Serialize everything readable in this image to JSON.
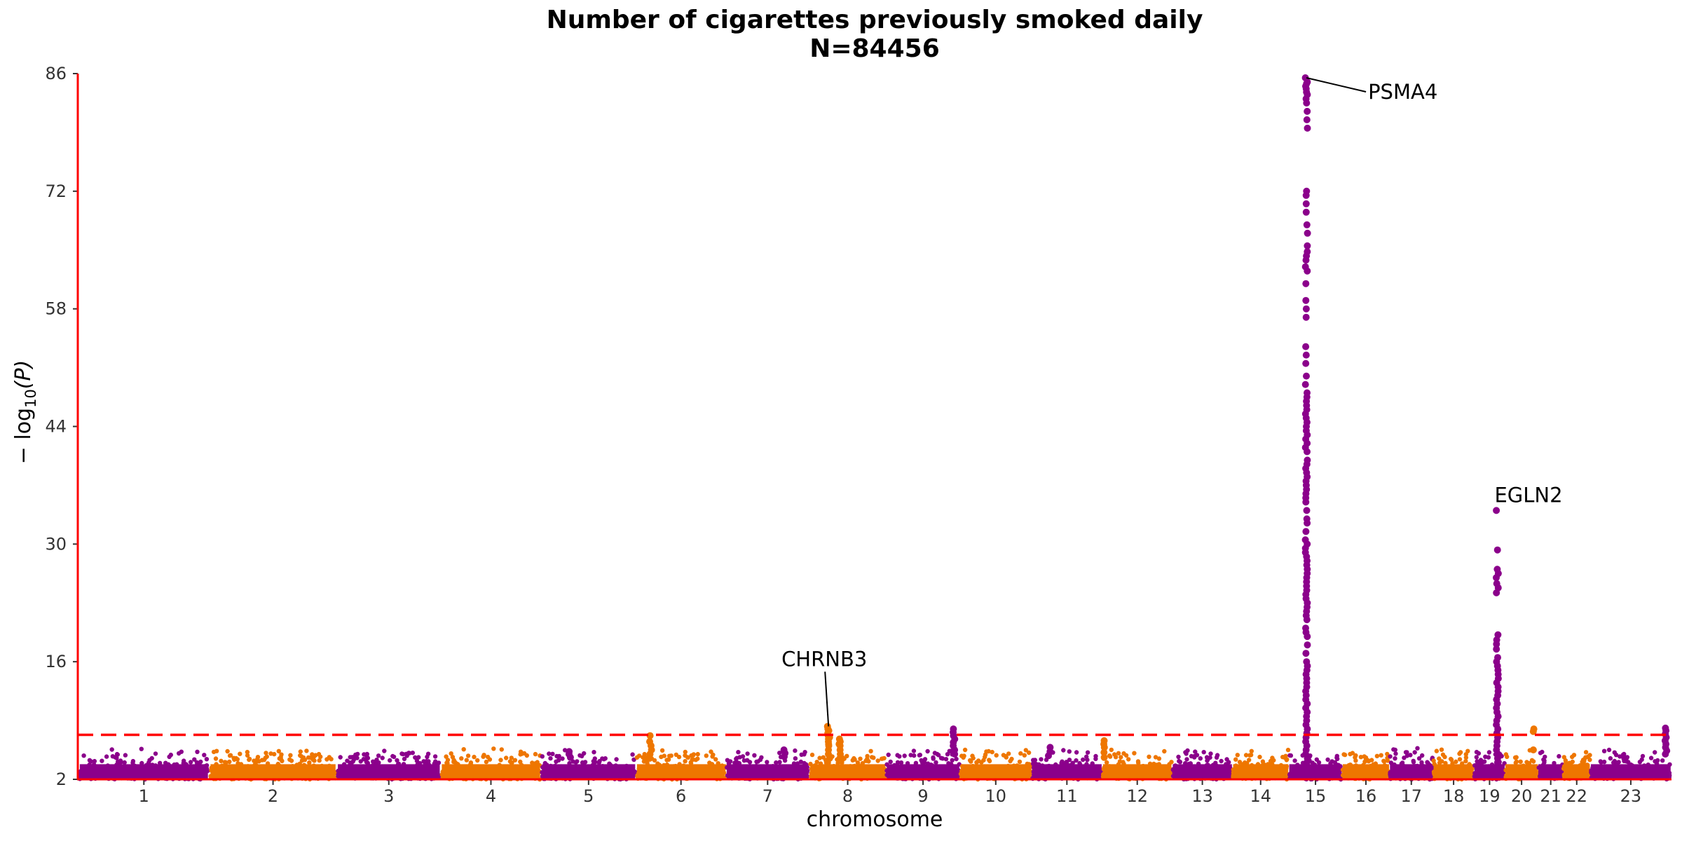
{
  "chart_data": {
    "type": "scatter",
    "title": "Number of cigarettes previously smoked daily",
    "subtitle": "N=84456",
    "xlabel": "chromosome",
    "ylabel": "− log10(P)",
    "ylabel_main": "− log",
    "ylabel_sub": "10",
    "ylabel_var": "(P)",
    "ylim": [
      2,
      86
    ],
    "yticks": [
      2,
      16,
      30,
      44,
      58,
      72,
      86
    ],
    "significance_threshold": 7.3,
    "colors": {
      "odd": "#8B008B",
      "even": "#EE7600",
      "threshold": "#FF0000",
      "axis": "#FF0000"
    },
    "chromosomes": [
      {
        "label": "1",
        "length": 249
      },
      {
        "label": "2",
        "length": 243
      },
      {
        "label": "3",
        "length": 198
      },
      {
        "label": "4",
        "length": 191
      },
      {
        "label": "5",
        "length": 181
      },
      {
        "label": "6",
        "length": 171
      },
      {
        "label": "7",
        "length": 159
      },
      {
        "label": "8",
        "length": 146
      },
      {
        "label": "9",
        "length": 141
      },
      {
        "label": "10",
        "length": 136
      },
      {
        "label": "11",
        "length": 135
      },
      {
        "label": "12",
        "length": 133
      },
      {
        "label": "13",
        "length": 115
      },
      {
        "label": "14",
        "length": 107
      },
      {
        "label": "15",
        "length": 102
      },
      {
        "label": "16",
        "length": 90
      },
      {
        "label": "17",
        "length": 83
      },
      {
        "label": "18",
        "length": 78
      },
      {
        "label": "19",
        "length": 59
      },
      {
        "label": "20",
        "length": 63
      },
      {
        "label": "21",
        "length": 48
      },
      {
        "label": "22",
        "length": 51
      },
      {
        "label": "23",
        "length": 155
      }
    ],
    "peaks": [
      {
        "chrom": "15",
        "pos": 0.33,
        "max": 85.5,
        "values": [
          85.5,
          85,
          84.8,
          84.5,
          84.2,
          83.8,
          83.5,
          83,
          82.5,
          81.5,
          80.5,
          79.5,
          72,
          71.5,
          70.5,
          69.5,
          68,
          67,
          65.5,
          64.8,
          64.3,
          63.8,
          63,
          62.5,
          61,
          59,
          58,
          57,
          53.5,
          52.5,
          51.5,
          50,
          49,
          48,
          47.5,
          47,
          46.5,
          46,
          45.5,
          45,
          44.5,
          44,
          43.5,
          43,
          42.5,
          42,
          41.5,
          41,
          40,
          39.5,
          39,
          38.5,
          38,
          37.5,
          37,
          36.5,
          36,
          35.5,
          35,
          34,
          33,
          32.5,
          31.5,
          30.5,
          30,
          29.5,
          29,
          28.5,
          28,
          27.5,
          27,
          26.5,
          26,
          25.5,
          25,
          24.5,
          24,
          23.5,
          23,
          22.5,
          22,
          21.5,
          21,
          20,
          19.5,
          19,
          18,
          17,
          16,
          15.5,
          15,
          14.5,
          14,
          13.5,
          13,
          12.5,
          12,
          11.5,
          11,
          10.5,
          10,
          9.5,
          9,
          8.5,
          8,
          7.5,
          7,
          6.5,
          6,
          5.5,
          5,
          4.5,
          4
        ]
      },
      {
        "chrom": "19",
        "pos": 0.75,
        "max": 34,
        "values": [
          34,
          29.3,
          27,
          26.5,
          26,
          25.3,
          24.8,
          24.2,
          19.2,
          18.6,
          18.1,
          17.5,
          16.5,
          16,
          15.5,
          15,
          14.5,
          14,
          13.5,
          13,
          12.5,
          12,
          11.5,
          11,
          10.5,
          10,
          9.5,
          9,
          8.5,
          8,
          7.5,
          7,
          6.5,
          6,
          5.5,
          5,
          4.5,
          4
        ]
      },
      {
        "chrom": "8",
        "pos": 0.25,
        "max": 8.3,
        "values": [
          8.3,
          8,
          7.8,
          7.5,
          7.2,
          7,
          6.8,
          6.5,
          6.2,
          6,
          5.5,
          5,
          4.5,
          4
        ]
      },
      {
        "chrom": "8",
        "pos": 0.4,
        "max": 6.8,
        "values": [
          6.8,
          6.5,
          6.2,
          6,
          5.5,
          5,
          4.5
        ]
      },
      {
        "chrom": "9",
        "pos": 0.92,
        "max": 8,
        "values": [
          8,
          7.6,
          7.2,
          6.8,
          6.4,
          6,
          5.5,
          5
        ]
      },
      {
        "chrom": "6",
        "pos": 0.16,
        "max": 7.2,
        "values": [
          7.2,
          6.5,
          6,
          5.5,
          5,
          4.5
        ]
      },
      {
        "chrom": "20",
        "pos": 0.86,
        "max": 8,
        "values": [
          8,
          7.7,
          5.5
        ]
      },
      {
        "chrom": "23",
        "pos": 0.93,
        "max": 8.1,
        "values": [
          8.1,
          7.8,
          7.4,
          7,
          6.6,
          6.2,
          5.8,
          5.4,
          5
        ]
      },
      {
        "chrom": "11",
        "pos": 0.25,
        "max": 5.8,
        "values": [
          5.8,
          5.3,
          4.8
        ]
      },
      {
        "chrom": "12",
        "pos": 0.02,
        "max": 6.6,
        "values": [
          6.6,
          6.2,
          5.8,
          5.2,
          4.6
        ]
      },
      {
        "chrom": "5",
        "pos": 0.3,
        "max": 5.3,
        "values": [
          5.3,
          5,
          4.6
        ]
      },
      {
        "chrom": "7",
        "pos": 0.7,
        "max": 5.5,
        "values": [
          5.5,
          5.1,
          4.7
        ]
      }
    ],
    "annotations": [
      {
        "label": "PSMA4",
        "chrom": "15",
        "pos": 0.33,
        "y": 85.5
      },
      {
        "label": "CHRNB3",
        "chrom": "8",
        "pos": 0.25,
        "y": 8.3
      },
      {
        "label": "EGLN2",
        "chrom": "19",
        "pos": 0.75,
        "y": 34
      }
    ]
  }
}
